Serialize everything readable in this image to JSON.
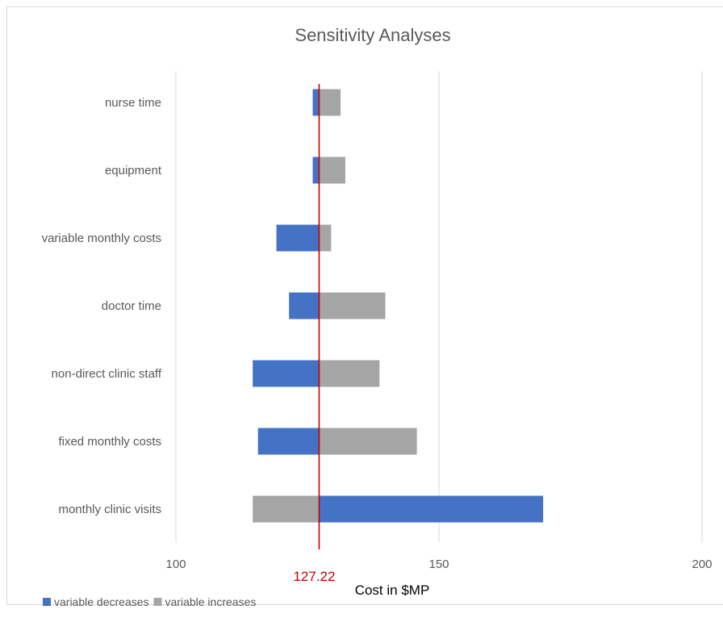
{
  "chart_data": {
    "type": "bar",
    "orientation": "horizontal",
    "title": "Sensitivity Analyses",
    "xlabel": "Cost in $MP",
    "xlim": [
      100,
      200
    ],
    "xticks": [
      "100",
      "150",
      "200"
    ],
    "grid": true,
    "legend_position": "bottom-left",
    "baseline": 127.22,
    "baseline_label": "127.22",
    "categories": [
      "nurse time",
      "equipment",
      "variable monthly costs",
      "doctor time",
      "non-direct clinic staff",
      "fixed monthly costs",
      "monthly clinic visits"
    ],
    "series": [
      {
        "name": "variable decreases",
        "color": "#4472C4",
        "values": [
          126.0,
          126.0,
          119.1,
          121.5,
          114.6,
          115.6,
          169.8
        ]
      },
      {
        "name": "variable increases",
        "color": "#A5A5A5",
        "values": [
          131.3,
          132.2,
          129.5,
          139.8,
          138.7,
          145.8,
          114.6
        ]
      }
    ],
    "reference_line_color": "#C00000"
  }
}
